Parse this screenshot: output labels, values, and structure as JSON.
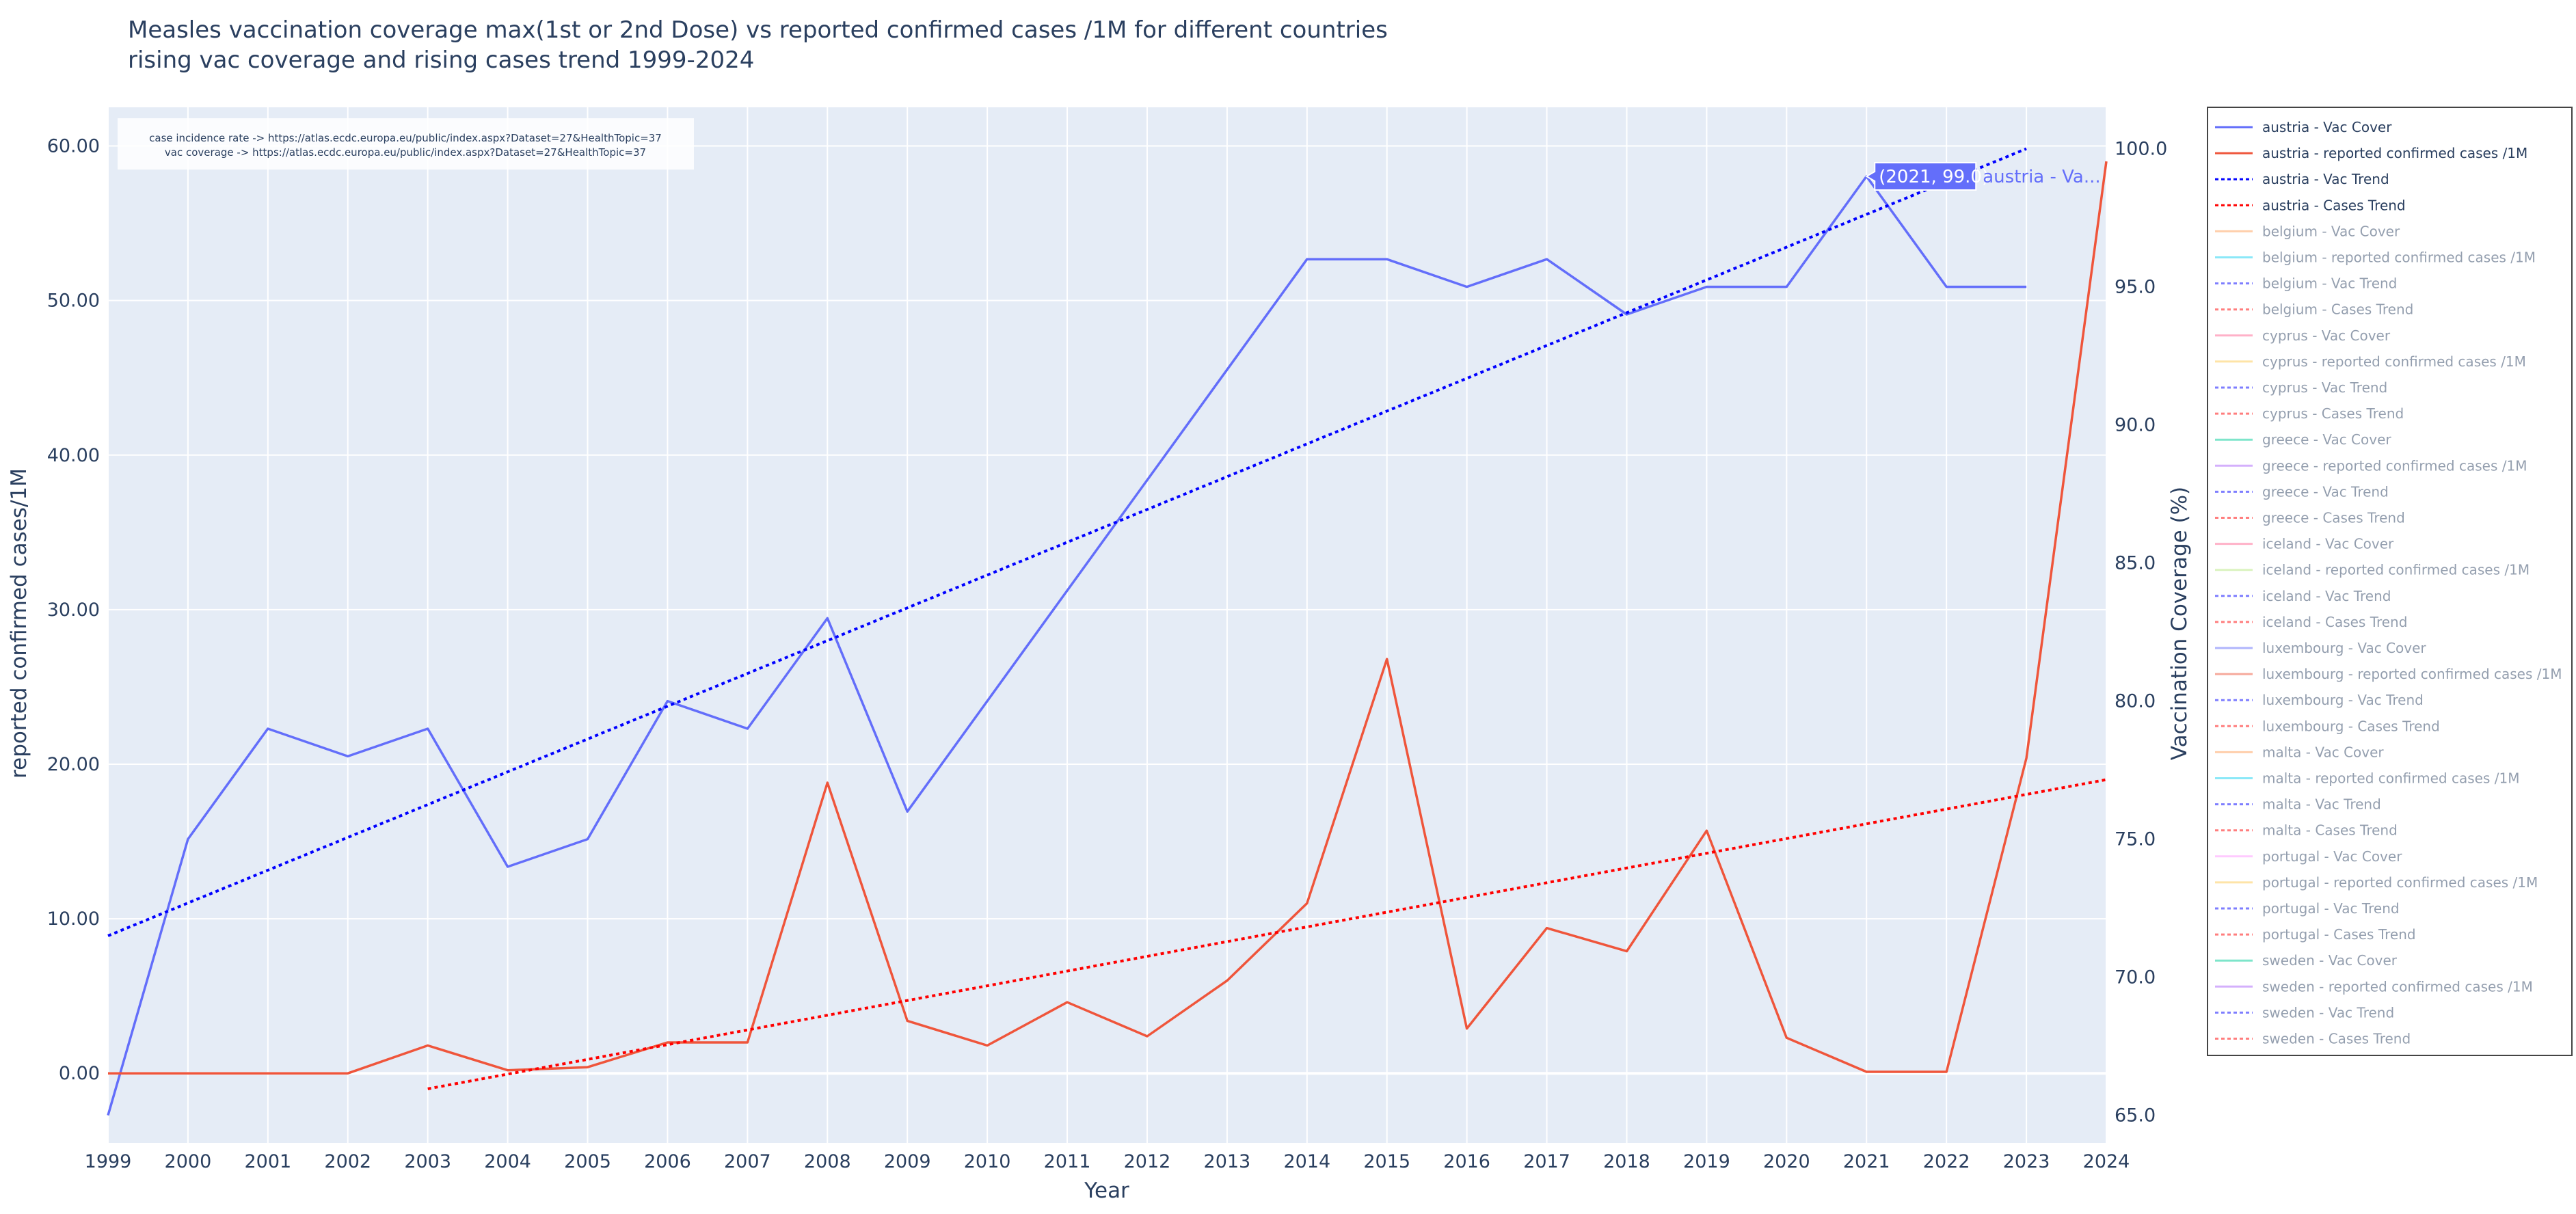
{
  "chart_data": {
    "type": "line",
    "title": "Measles vaccination coverage  max(1st or 2nd Dose) vs reported confirmed cases /1M for different countries",
    "subtitle": "rising vac coverage and rising cases trend 1999-2024",
    "xlabel": "Year",
    "ylabel_left": "reported confirmed cases/1M",
    "ylabel_right": "Vaccination Coverage (%)",
    "xlim": [
      1999,
      2024
    ],
    "ylim_left": [
      -4.5,
      62.5
    ],
    "ylim_right": [
      64.0,
      101.5
    ],
    "x_ticks": [
      "1999",
      "2000",
      "2001",
      "2002",
      "2003",
      "2004",
      "2005",
      "2006",
      "2007",
      "2008",
      "2009",
      "2010",
      "2011",
      "2012",
      "2013",
      "2014",
      "2015",
      "2016",
      "2017",
      "2018",
      "2019",
      "2020",
      "2021",
      "2022",
      "2023",
      "2024"
    ],
    "y_left_ticks": [
      "0.00",
      "10.00",
      "20.00",
      "30.00",
      "40.00",
      "50.00",
      "60.00"
    ],
    "y_right_ticks": [
      "65.0",
      "70.0",
      "75.0",
      "80.0",
      "85.0",
      "90.0",
      "95.0",
      "100.0"
    ],
    "grid": true,
    "legend_position": "right",
    "annotation_lines": [
      "case incidence rate -> https://atlas.ecdc.europa.eu/public/index.aspx?Dataset=27&HealthTopic=37",
      "vac coverage -> https://atlas.ecdc.europa.eu/public/index.aspx?Dataset=27&HealthTopic=37"
    ],
    "hover_label": {
      "value": "(2021, 99.0)",
      "series": "austria - Va...",
      "x": 2021,
      "y": 99.0
    },
    "series": [
      {
        "name": "austria - Vac Cover",
        "axis": "right",
        "dash": "solid",
        "color": "#636efa",
        "x": [
          1999,
          2000,
          2001,
          2002,
          2003,
          2004,
          2005,
          2006,
          2007,
          2008,
          2009,
          2010,
          2011,
          2012,
          2013,
          2014,
          2015,
          2016,
          2017,
          2018,
          2019,
          2020,
          2021,
          2022,
          2023
        ],
        "y": [
          65.0,
          75.0,
          79.0,
          78.0,
          79.0,
          74.0,
          75.0,
          80.0,
          79.0,
          83.0,
          76.0,
          80.0,
          84.0,
          88.0,
          92.0,
          96.0,
          96.0,
          95.0,
          96.0,
          94.0,
          95.0,
          95.0,
          99.0,
          95.0,
          95.0
        ]
      },
      {
        "name": "austria - reported confirmed cases /1M",
        "axis": "left",
        "dash": "solid",
        "color": "#ef553b",
        "x": [
          1999,
          2000,
          2001,
          2002,
          2003,
          2004,
          2005,
          2006,
          2007,
          2008,
          2009,
          2010,
          2011,
          2012,
          2013,
          2014,
          2015,
          2016,
          2017,
          2018,
          2019,
          2020,
          2021,
          2022,
          2023,
          2024
        ],
        "y": [
          0.0,
          0.0,
          0.0,
          0.0,
          1.8,
          0.2,
          0.4,
          2.0,
          2.0,
          18.8,
          3.4,
          1.8,
          4.6,
          2.4,
          6.0,
          11.0,
          26.8,
          2.9,
          9.4,
          7.9,
          15.7,
          2.3,
          0.1,
          0.1,
          20.4,
          59.0
        ]
      },
      {
        "name": "austria - Vac Trend",
        "axis": "right",
        "dash": "dot",
        "color": "#0000ff",
        "x": [
          1999,
          2023
        ],
        "y": [
          71.5,
          100.0
        ]
      },
      {
        "name": "austria - Cases Trend",
        "axis": "left",
        "dash": "dot",
        "color": "#ff0000",
        "x": [
          2003,
          2024
        ],
        "y": [
          -1.0,
          19.0
        ]
      }
    ]
  },
  "legend": {
    "entries": [
      {
        "label": "austria - Vac Cover",
        "color": "#636efa",
        "dash": "solid",
        "active": true
      },
      {
        "label": "austria - reported confirmed cases /1M",
        "color": "#ef553b",
        "dash": "solid",
        "active": true
      },
      {
        "label": "austria - Vac Trend",
        "color": "#0000ff",
        "dash": "dot",
        "active": true
      },
      {
        "label": "austria - Cases Trend",
        "color": "#ff0000",
        "dash": "dot",
        "active": true
      },
      {
        "label": "belgium - Vac Cover",
        "color": "#ffa15a",
        "dash": "solid",
        "active": false
      },
      {
        "label": "belgium - reported confirmed cases /1M",
        "color": "#19d3f3",
        "dash": "solid",
        "active": false
      },
      {
        "label": "belgium - Vac Trend",
        "color": "#0000ff",
        "dash": "dot",
        "active": false
      },
      {
        "label": "belgium - Cases Trend",
        "color": "#ff0000",
        "dash": "dot",
        "active": false
      },
      {
        "label": "cyprus - Vac Cover",
        "color": "#ff6692",
        "dash": "solid",
        "active": false
      },
      {
        "label": "cyprus - reported confirmed cases /1M",
        "color": "#fecb52",
        "dash": "solid",
        "active": false
      },
      {
        "label": "cyprus - Vac Trend",
        "color": "#0000ff",
        "dash": "dot",
        "active": false
      },
      {
        "label": "cyprus - Cases Trend",
        "color": "#ff0000",
        "dash": "dot",
        "active": false
      },
      {
        "label": "greece - Vac Cover",
        "color": "#00cc96",
        "dash": "solid",
        "active": false
      },
      {
        "label": "greece - reported confirmed cases /1M",
        "color": "#ab63fa",
        "dash": "solid",
        "active": false
      },
      {
        "label": "greece - Vac Trend",
        "color": "#0000ff",
        "dash": "dot",
        "active": false
      },
      {
        "label": "greece - Cases Trend",
        "color": "#ff0000",
        "dash": "dot",
        "active": false
      },
      {
        "label": "iceland - Vac Cover",
        "color": "#ff6692",
        "dash": "solid",
        "active": false
      },
      {
        "label": "iceland - reported confirmed cases /1M",
        "color": "#b6e880",
        "dash": "solid",
        "active": false
      },
      {
        "label": "iceland - Vac Trend",
        "color": "#0000ff",
        "dash": "dot",
        "active": false
      },
      {
        "label": "iceland - Cases Trend",
        "color": "#ff0000",
        "dash": "dot",
        "active": false
      },
      {
        "label": "luxembourg - Vac Cover",
        "color": "#636efa",
        "dash": "solid",
        "active": false
      },
      {
        "label": "luxembourg - reported confirmed cases /1M",
        "color": "#ef553b",
        "dash": "solid",
        "active": false
      },
      {
        "label": "luxembourg - Vac Trend",
        "color": "#0000ff",
        "dash": "dot",
        "active": false
      },
      {
        "label": "luxembourg - Cases Trend",
        "color": "#ff0000",
        "dash": "dot",
        "active": false
      },
      {
        "label": "malta - Vac Cover",
        "color": "#ffa15a",
        "dash": "solid",
        "active": false
      },
      {
        "label": "malta - reported confirmed cases /1M",
        "color": "#19d3f3",
        "dash": "solid",
        "active": false
      },
      {
        "label": "malta - Vac Trend",
        "color": "#0000ff",
        "dash": "dot",
        "active": false
      },
      {
        "label": "malta - Cases Trend",
        "color": "#ff0000",
        "dash": "dot",
        "active": false
      },
      {
        "label": "portugal - Vac Cover",
        "color": "#ff97ff",
        "dash": "solid",
        "active": false
      },
      {
        "label": "portugal - reported confirmed cases /1M",
        "color": "#fecb52",
        "dash": "solid",
        "active": false
      },
      {
        "label": "portugal - Vac Trend",
        "color": "#0000ff",
        "dash": "dot",
        "active": false
      },
      {
        "label": "portugal - Cases Trend",
        "color": "#ff0000",
        "dash": "dot",
        "active": false
      },
      {
        "label": "sweden - Vac Cover",
        "color": "#00cc96",
        "dash": "solid",
        "active": false
      },
      {
        "label": "sweden - reported confirmed cases /1M",
        "color": "#ab63fa",
        "dash": "solid",
        "active": false
      },
      {
        "label": "sweden - Vac Trend",
        "color": "#0000ff",
        "dash": "dot",
        "active": false
      },
      {
        "label": "sweden - Cases Trend",
        "color": "#ff0000",
        "dash": "dot",
        "active": false
      }
    ]
  },
  "colors": {
    "plot_background": "#e5ecf6",
    "gridline": "#ffffff",
    "text": "#2a3f5f",
    "legend_inactive_text": "#a8b3c4"
  }
}
